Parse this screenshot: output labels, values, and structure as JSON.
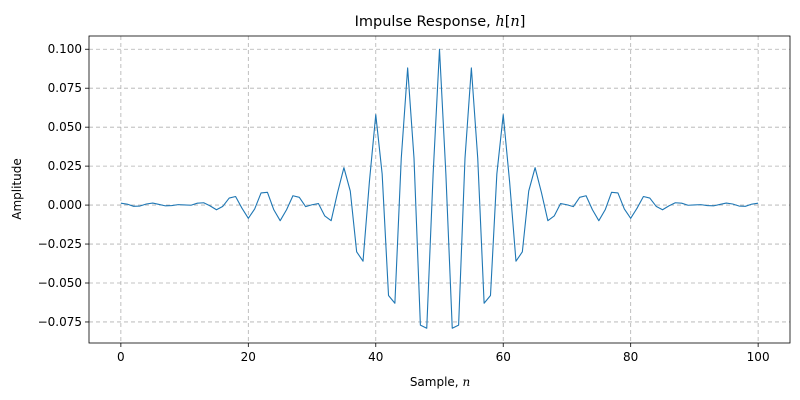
{
  "chart_data": {
    "type": "line",
    "title": "Impulse Response, h[n]",
    "title_parts": {
      "prefix": "Impulse Response, ",
      "italic": "h",
      "suffix": "[",
      "italic2": "n",
      "suffix2": "]"
    },
    "xlabel": "Sample, n",
    "xlabel_parts": {
      "prefix": "Sample, ",
      "italic": "n"
    },
    "ylabel": "Amplitude",
    "xlim": [
      -5,
      105
    ],
    "ylim": [
      -0.0885,
      0.1085
    ],
    "xticks": [
      0,
      20,
      40,
      60,
      80,
      100
    ],
    "xtick_labels": [
      "0",
      "20",
      "40",
      "60",
      "80",
      "100"
    ],
    "yticks": [
      -0.075,
      -0.05,
      -0.025,
      0.0,
      0.025,
      0.05,
      0.075,
      0.1
    ],
    "ytick_labels": [
      "−0.075",
      "−0.050",
      "−0.025",
      "0.000",
      "0.025",
      "0.050",
      "0.075",
      "0.100"
    ],
    "grid": true,
    "color": "#1f77b4",
    "series": [
      {
        "x": [
          0,
          1,
          2,
          3,
          4,
          5,
          6,
          7,
          8,
          9,
          10,
          11,
          12,
          13,
          14,
          15,
          16,
          17,
          18,
          19,
          20,
          21,
          22,
          23,
          24,
          25,
          26,
          27,
          28,
          29,
          30,
          31,
          32,
          33,
          34,
          35,
          36,
          37,
          38,
          39,
          40,
          41,
          42,
          43,
          44,
          45,
          46,
          47,
          48,
          49,
          50,
          51,
          52,
          53,
          54,
          55,
          56,
          57,
          58,
          59,
          60,
          61,
          62,
          63,
          64,
          65,
          66,
          67,
          68,
          69,
          70,
          71,
          72,
          73,
          74,
          75,
          76,
          77,
          78,
          79,
          80,
          81,
          82,
          83,
          84,
          85,
          86,
          87,
          88,
          89,
          90,
          91,
          92,
          93,
          94,
          95,
          96,
          97,
          98,
          99,
          100
        ],
        "values": [
          0.0012,
          0.0006,
          -0.0008,
          -0.0006,
          0.0007,
          0.0013,
          0.0004,
          -0.0005,
          -0.0003,
          0.0003,
          0.0001,
          -0.0001,
          0.0012,
          0.0015,
          -0.0005,
          -0.003,
          -0.0008,
          0.0045,
          0.0055,
          -0.002,
          -0.0085,
          -0.0025,
          0.0078,
          0.0082,
          -0.003,
          -0.01,
          -0.003,
          0.006,
          0.005,
          -0.001,
          0.0002,
          0.001,
          -0.007,
          -0.01,
          0.008,
          0.024,
          0.009,
          -0.03,
          -0.036,
          0.015,
          0.058,
          0.02,
          -0.058,
          -0.063,
          0.03,
          0.088,
          0.03,
          -0.077,
          -0.079,
          0.02,
          0.1,
          0.02,
          -0.079,
          -0.077,
          0.03,
          0.088,
          0.03,
          -0.063,
          -0.058,
          0.02,
          0.058,
          0.015,
          -0.036,
          -0.03,
          0.009,
          0.024,
          0.008,
          -0.01,
          -0.007,
          0.001,
          0.0002,
          -0.001,
          0.005,
          0.006,
          -0.003,
          -0.01,
          -0.003,
          0.0082,
          0.0078,
          -0.0025,
          -0.0085,
          -0.002,
          0.0055,
          0.0045,
          -0.0008,
          -0.003,
          -0.0005,
          0.0015,
          0.0012,
          -0.0001,
          0.0001,
          0.0003,
          -0.0003,
          -0.0005,
          0.0004,
          0.0013,
          0.0007,
          -0.0006,
          -0.0008,
          0.0006,
          0.0012
        ]
      }
    ]
  }
}
